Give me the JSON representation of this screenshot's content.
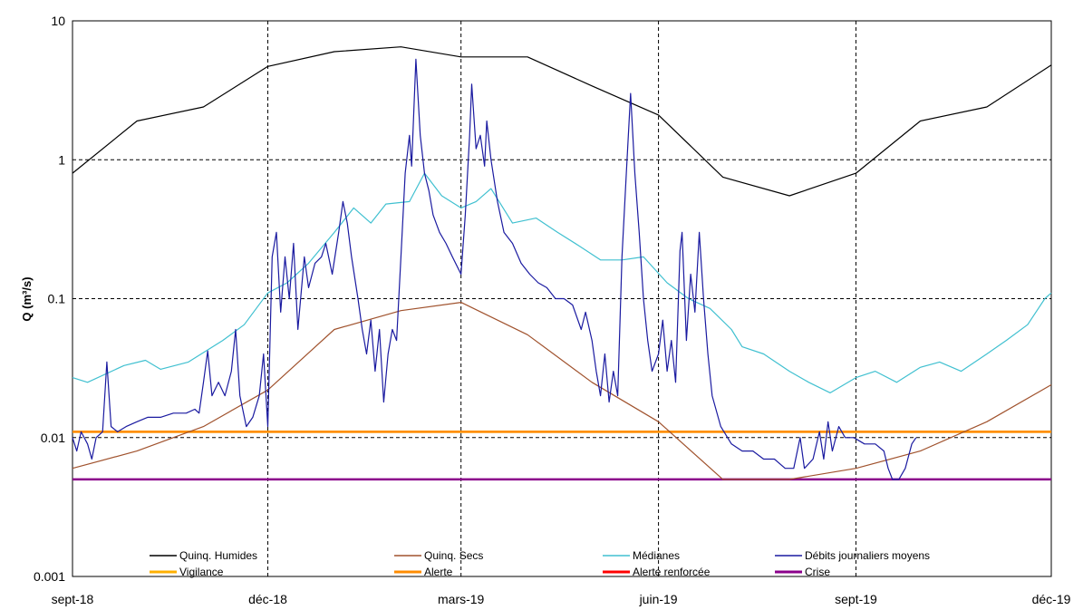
{
  "chart_data": {
    "type": "line",
    "ylabel": "Q (m³/s)",
    "yscale": "log",
    "ylim": [
      0.001,
      10
    ],
    "y_ticks": [
      "10",
      "1",
      "0.1",
      "0.01",
      "0.001"
    ],
    "xlim": [
      "2018-09-01",
      "2019-12-01"
    ],
    "x_ticks": [
      "sept-18",
      "déc-18",
      "mars-19",
      "juin-19",
      "sept-19",
      "déc-19"
    ],
    "grid": true,
    "legend_position": "bottom",
    "series": [
      {
        "name": "Quinq. Humides",
        "color": "#000000",
        "points": [
          [
            "2018-09-01",
            0.8
          ],
          [
            "2018-10-01",
            1.9
          ],
          [
            "2018-11-01",
            2.4
          ],
          [
            "2018-12-01",
            4.7
          ],
          [
            "2019-01-01",
            6.0
          ],
          [
            "2019-02-01",
            6.5
          ],
          [
            "2019-03-01",
            5.5
          ],
          [
            "2019-04-01",
            5.5
          ],
          [
            "2019-05-01",
            3.4
          ],
          [
            "2019-06-01",
            2.1
          ],
          [
            "2019-07-01",
            0.75
          ],
          [
            "2019-08-01",
            0.55
          ],
          [
            "2019-09-01",
            0.8
          ],
          [
            "2019-10-01",
            1.9
          ],
          [
            "2019-11-01",
            2.4
          ],
          [
            "2019-12-01",
            4.8
          ]
        ]
      },
      {
        "name": "Quinq. Secs",
        "color": "#a0522d",
        "points": [
          [
            "2018-09-01",
            0.006
          ],
          [
            "2018-10-01",
            0.008
          ],
          [
            "2018-11-01",
            0.012
          ],
          [
            "2018-12-01",
            0.022
          ],
          [
            "2019-01-01",
            0.06
          ],
          [
            "2019-02-01",
            0.082
          ],
          [
            "2019-03-01",
            0.094
          ],
          [
            "2019-04-01",
            0.055
          ],
          [
            "2019-05-01",
            0.025
          ],
          [
            "2019-06-01",
            0.013
          ],
          [
            "2019-07-01",
            0.005
          ],
          [
            "2019-08-01",
            0.005
          ],
          [
            "2019-09-01",
            0.006
          ],
          [
            "2019-10-01",
            0.008
          ],
          [
            "2019-11-01",
            0.013
          ],
          [
            "2019-12-01",
            0.024
          ]
        ]
      },
      {
        "name": "Médianes",
        "color": "#40c0d0",
        "points": [
          [
            "2018-09-01",
            0.027
          ],
          [
            "2018-09-08",
            0.025
          ],
          [
            "2018-09-25",
            0.033
          ],
          [
            "2018-10-05",
            0.036
          ],
          [
            "2018-10-12",
            0.031
          ],
          [
            "2018-10-25",
            0.035
          ],
          [
            "2018-11-10",
            0.05
          ],
          [
            "2018-11-20",
            0.065
          ],
          [
            "2018-12-01",
            0.11
          ],
          [
            "2018-12-10",
            0.13
          ],
          [
            "2018-12-20",
            0.18
          ],
          [
            "2019-01-01",
            0.3
          ],
          [
            "2019-01-10",
            0.45
          ],
          [
            "2019-01-18",
            0.35
          ],
          [
            "2019-01-25",
            0.48
          ],
          [
            "2019-02-05",
            0.5
          ],
          [
            "2019-02-12",
            0.8
          ],
          [
            "2019-02-20",
            0.55
          ],
          [
            "2019-03-01",
            0.45
          ],
          [
            "2019-03-08",
            0.5
          ],
          [
            "2019-03-15",
            0.62
          ],
          [
            "2019-03-25",
            0.35
          ],
          [
            "2019-04-05",
            0.38
          ],
          [
            "2019-04-15",
            0.3
          ],
          [
            "2019-04-25",
            0.24
          ],
          [
            "2019-05-05",
            0.19
          ],
          [
            "2019-05-15",
            0.19
          ],
          [
            "2019-05-25",
            0.2
          ],
          [
            "2019-06-05",
            0.13
          ],
          [
            "2019-06-15",
            0.1
          ],
          [
            "2019-06-25",
            0.085
          ],
          [
            "2019-07-05",
            0.06
          ],
          [
            "2019-07-10",
            0.045
          ],
          [
            "2019-07-20",
            0.04
          ],
          [
            "2019-08-01",
            0.03
          ],
          [
            "2019-08-10",
            0.025
          ],
          [
            "2019-08-20",
            0.021
          ],
          [
            "2019-09-01",
            0.027
          ],
          [
            "2019-09-10",
            0.03
          ],
          [
            "2019-09-20",
            0.025
          ],
          [
            "2019-10-01",
            0.032
          ],
          [
            "2019-10-10",
            0.035
          ],
          [
            "2019-10-20",
            0.03
          ],
          [
            "2019-11-01",
            0.04
          ],
          [
            "2019-11-10",
            0.05
          ],
          [
            "2019-11-20",
            0.065
          ],
          [
            "2019-11-28",
            0.1
          ],
          [
            "2019-12-01",
            0.11
          ]
        ]
      },
      {
        "name": "Débits journaliers moyens",
        "color": "#1a1aa0",
        "points": [
          [
            "2018-09-01",
            0.01
          ],
          [
            "2018-09-03",
            0.008
          ],
          [
            "2018-09-05",
            0.011
          ],
          [
            "2018-09-08",
            0.009
          ],
          [
            "2018-09-10",
            0.007
          ],
          [
            "2018-09-12",
            0.01
          ],
          [
            "2018-09-15",
            0.011
          ],
          [
            "2018-09-17",
            0.035
          ],
          [
            "2018-09-19",
            0.012
          ],
          [
            "2018-09-22",
            0.011
          ],
          [
            "2018-09-26",
            0.012
          ],
          [
            "2018-10-01",
            0.013
          ],
          [
            "2018-10-06",
            0.014
          ],
          [
            "2018-10-12",
            0.014
          ],
          [
            "2018-10-18",
            0.015
          ],
          [
            "2018-10-24",
            0.015
          ],
          [
            "2018-10-28",
            0.016
          ],
          [
            "2018-10-30",
            0.015
          ],
          [
            "2018-11-01",
            0.025
          ],
          [
            "2018-11-03",
            0.042
          ],
          [
            "2018-11-05",
            0.02
          ],
          [
            "2018-11-08",
            0.025
          ],
          [
            "2018-11-11",
            0.02
          ],
          [
            "2018-11-14",
            0.03
          ],
          [
            "2018-11-16",
            0.06
          ],
          [
            "2018-11-18",
            0.02
          ],
          [
            "2018-11-21",
            0.012
          ],
          [
            "2018-11-24",
            0.014
          ],
          [
            "2018-11-27",
            0.02
          ],
          [
            "2018-11-29",
            0.04
          ],
          [
            "2018-12-01",
            0.012
          ],
          [
            "2018-12-03",
            0.2
          ],
          [
            "2018-12-05",
            0.3
          ],
          [
            "2018-12-07",
            0.08
          ],
          [
            "2018-12-09",
            0.2
          ],
          [
            "2018-12-11",
            0.1
          ],
          [
            "2018-12-13",
            0.25
          ],
          [
            "2018-12-15",
            0.06
          ],
          [
            "2018-12-18",
            0.2
          ],
          [
            "2018-12-20",
            0.12
          ],
          [
            "2018-12-23",
            0.18
          ],
          [
            "2018-12-26",
            0.2
          ],
          [
            "2018-12-28",
            0.25
          ],
          [
            "2018-12-31",
            0.15
          ],
          [
            "2019-01-03",
            0.3
          ],
          [
            "2019-01-05",
            0.5
          ],
          [
            "2019-01-07",
            0.35
          ],
          [
            "2019-01-09",
            0.2
          ],
          [
            "2019-01-12",
            0.1
          ],
          [
            "2019-01-14",
            0.06
          ],
          [
            "2019-01-16",
            0.04
          ],
          [
            "2019-01-18",
            0.07
          ],
          [
            "2019-01-20",
            0.03
          ],
          [
            "2019-01-22",
            0.06
          ],
          [
            "2019-01-24",
            0.018
          ],
          [
            "2019-01-26",
            0.04
          ],
          [
            "2019-01-28",
            0.06
          ],
          [
            "2019-01-30",
            0.05
          ],
          [
            "2019-02-01",
            0.2
          ],
          [
            "2019-02-03",
            0.8
          ],
          [
            "2019-02-05",
            1.5
          ],
          [
            "2019-02-06",
            0.9
          ],
          [
            "2019-02-08",
            5.3
          ],
          [
            "2019-02-10",
            1.5
          ],
          [
            "2019-02-12",
            0.8
          ],
          [
            "2019-02-14",
            0.6
          ],
          [
            "2019-02-16",
            0.4
          ],
          [
            "2019-02-19",
            0.3
          ],
          [
            "2019-02-22",
            0.25
          ],
          [
            "2019-02-25",
            0.2
          ],
          [
            "2019-03-01",
            0.15
          ],
          [
            "2019-03-03",
            0.4
          ],
          [
            "2019-03-05",
            1.5
          ],
          [
            "2019-03-06",
            3.5
          ],
          [
            "2019-03-08",
            1.2
          ],
          [
            "2019-03-10",
            1.5
          ],
          [
            "2019-03-12",
            0.9
          ],
          [
            "2019-03-13",
            1.9
          ],
          [
            "2019-03-15",
            1.0
          ],
          [
            "2019-03-18",
            0.5
          ],
          [
            "2019-03-21",
            0.3
          ],
          [
            "2019-03-25",
            0.25
          ],
          [
            "2019-03-29",
            0.18
          ],
          [
            "2019-04-02",
            0.15
          ],
          [
            "2019-04-06",
            0.13
          ],
          [
            "2019-04-10",
            0.12
          ],
          [
            "2019-04-14",
            0.1
          ],
          [
            "2019-04-18",
            0.1
          ],
          [
            "2019-04-22",
            0.09
          ],
          [
            "2019-04-26",
            0.06
          ],
          [
            "2019-04-28",
            0.08
          ],
          [
            "2019-05-01",
            0.05
          ],
          [
            "2019-05-03",
            0.03
          ],
          [
            "2019-05-05",
            0.02
          ],
          [
            "2019-05-07",
            0.04
          ],
          [
            "2019-05-09",
            0.018
          ],
          [
            "2019-05-11",
            0.03
          ],
          [
            "2019-05-13",
            0.02
          ],
          [
            "2019-05-15",
            0.2
          ],
          [
            "2019-05-17",
            0.8
          ],
          [
            "2019-05-19",
            3.0
          ],
          [
            "2019-05-21",
            0.8
          ],
          [
            "2019-05-23",
            0.3
          ],
          [
            "2019-05-25",
            0.1
          ],
          [
            "2019-05-27",
            0.05
          ],
          [
            "2019-05-29",
            0.03
          ],
          [
            "2019-06-01",
            0.04
          ],
          [
            "2019-06-03",
            0.07
          ],
          [
            "2019-06-05",
            0.03
          ],
          [
            "2019-06-07",
            0.05
          ],
          [
            "2019-06-09",
            0.025
          ],
          [
            "2019-06-11",
            0.22
          ],
          [
            "2019-06-12",
            0.3
          ],
          [
            "2019-06-14",
            0.05
          ],
          [
            "2019-06-16",
            0.15
          ],
          [
            "2019-06-18",
            0.08
          ],
          [
            "2019-06-20",
            0.3
          ],
          [
            "2019-06-22",
            0.1
          ],
          [
            "2019-06-24",
            0.04
          ],
          [
            "2019-06-26",
            0.02
          ],
          [
            "2019-06-30",
            0.012
          ],
          [
            "2019-07-05",
            0.009
          ],
          [
            "2019-07-10",
            0.008
          ],
          [
            "2019-07-15",
            0.008
          ],
          [
            "2019-07-20",
            0.007
          ],
          [
            "2019-07-25",
            0.007
          ],
          [
            "2019-07-30",
            0.006
          ],
          [
            "2019-08-03",
            0.006
          ],
          [
            "2019-08-06",
            0.01
          ],
          [
            "2019-08-08",
            0.006
          ],
          [
            "2019-08-12",
            0.007
          ],
          [
            "2019-08-15",
            0.011
          ],
          [
            "2019-08-17",
            0.007
          ],
          [
            "2019-08-19",
            0.013
          ],
          [
            "2019-08-21",
            0.008
          ],
          [
            "2019-08-24",
            0.012
          ],
          [
            "2019-08-27",
            0.01
          ],
          [
            "2019-08-31",
            0.01
          ],
          [
            "2019-09-05",
            0.009
          ],
          [
            "2019-09-10",
            0.009
          ],
          [
            "2019-09-14",
            0.008
          ],
          [
            "2019-09-16",
            0.006
          ],
          [
            "2019-09-18",
            0.005
          ],
          [
            "2019-09-21",
            0.005
          ],
          [
            "2019-09-24",
            0.006
          ],
          [
            "2019-09-27",
            0.009
          ],
          [
            "2019-09-29",
            0.01
          ]
        ]
      },
      {
        "name": "Vigilance",
        "color": "#ffb000",
        "points": [
          [
            "2018-09-01",
            0.011
          ],
          [
            "2019-12-01",
            0.011
          ]
        ]
      },
      {
        "name": "Alerte",
        "color": "#ff8c00",
        "points": [
          [
            "2018-09-01",
            0.011
          ],
          [
            "2019-12-01",
            0.011
          ]
        ]
      },
      {
        "name": "Alerte renforcée",
        "color": "#ff0000",
        "points": []
      },
      {
        "name": "Crise",
        "color": "#8b008b",
        "points": [
          [
            "2018-09-01",
            0.005
          ],
          [
            "2019-12-01",
            0.005
          ]
        ]
      }
    ]
  }
}
